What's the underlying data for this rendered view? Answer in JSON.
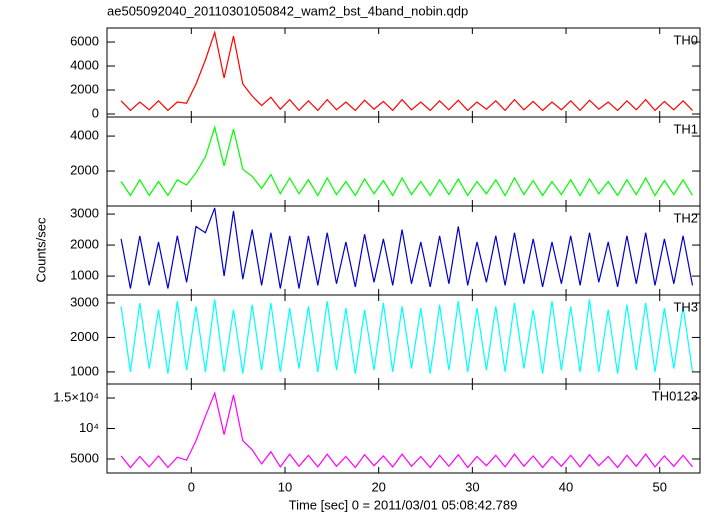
{
  "chart_data": {
    "type": "line",
    "title": "ae505092040_20110301050842_wam2_bst_4band_nobin.qdp",
    "xlabel": "Time [sec] 0 = 2011/03/01 05:08:42.789",
    "ylabel": "Counts/sec",
    "xlim": [
      -9,
      54.3
    ],
    "xticks": [
      0,
      10,
      20,
      30,
      40,
      50
    ],
    "x": [
      -7.5,
      -6.5,
      -5.5,
      -4.5,
      -3.5,
      -2.5,
      -1.5,
      -0.5,
      0.5,
      1.5,
      2.5,
      3.5,
      4.5,
      5.5,
      6.5,
      7.5,
      8.5,
      9.5,
      10.5,
      11.5,
      12.5,
      13.5,
      14.5,
      15.5,
      16.5,
      17.5,
      18.5,
      19.5,
      20.5,
      21.5,
      22.5,
      23.5,
      24.5,
      25.5,
      26.5,
      27.5,
      28.5,
      29.5,
      30.5,
      31.5,
      32.5,
      33.5,
      34.5,
      35.5,
      36.5,
      37.5,
      38.5,
      39.5,
      40.5,
      41.5,
      42.5,
      43.5,
      44.5,
      45.5,
      46.5,
      47.5,
      48.5,
      49.5,
      50.5,
      51.5,
      52.5,
      53.5
    ],
    "panels": [
      {
        "ylim": [
          -250,
          7170
        ],
        "yticks": [
          0,
          2000,
          4000,
          6000
        ],
        "series": [
          {
            "name": "TH0",
            "color": "#ff0000",
            "values": [
              1100,
              300,
              1000,
              350,
              1100,
              300,
              1000,
              900,
              2500,
              4500,
              6800,
              3000,
              6500,
              2500,
              1500,
              700,
              1400,
              400,
              1200,
              300,
              1100,
              300,
              1200,
              350,
              1000,
              300,
              1150,
              400,
              1050,
              300,
              1200,
              350,
              1000,
              300,
              1100,
              350,
              1150,
              300,
              1000,
              400,
              1100,
              300,
              1200,
              350,
              1050,
              300,
              1000,
              350,
              1100,
              300,
              1150,
              400,
              1000,
              300,
              1100,
              350,
              1200,
              300,
              1050,
              350,
              1100,
              300
            ]
          }
        ]
      },
      {
        "ylim": [
          0,
          5090
        ],
        "yticks": [
          2000,
          4000
        ],
        "series": [
          {
            "name": "TH1",
            "color": "#00ff00",
            "values": [
              1400,
              600,
              1500,
              600,
              1400,
              600,
              1500,
              1200,
              1900,
              2800,
              4500,
              2300,
              4400,
              2100,
              1700,
              1000,
              1800,
              700,
              1600,
              700,
              1500,
              600,
              1600,
              650,
              1400,
              600,
              1550,
              700,
              1450,
              600,
              1600,
              650,
              1400,
              600,
              1500,
              650,
              1550,
              600,
              1400,
              700,
              1500,
              600,
              1600,
              650,
              1450,
              600,
              1400,
              650,
              1500,
              600,
              1550,
              700,
              1400,
              600,
              1500,
              650,
              1600,
              600,
              1450,
              650,
              1500,
              600
            ]
          }
        ]
      },
      {
        "ylim": [
          390,
          3260
        ],
        "yticks": [
          1000,
          2000,
          3000
        ],
        "series": [
          {
            "name": "TH2",
            "color": "#0000cc",
            "values": [
              2200,
              600,
              2300,
              700,
              2100,
              600,
              2300,
              800,
              2600,
              2400,
              3200,
              1000,
              3100,
              900,
              2500,
              700,
              2400,
              600,
              2300,
              600,
              2300,
              700,
              2400,
              750,
              2100,
              650,
              2350,
              800,
              2200,
              700,
              2500,
              750,
              2100,
              650,
              2300,
              750,
              2600,
              700,
              2100,
              800,
              2300,
              700,
              2400,
              750,
              2200,
              650,
              2100,
              750,
              2300,
              700,
              2400,
              800,
              2100,
              650,
              2300,
              750,
              2400,
              700,
              2200,
              750,
              2300,
              700
            ]
          }
        ]
      },
      {
        "ylim": [
          650,
          3230
        ],
        "yticks": [
          1000,
          2000,
          3000
        ],
        "series": [
          {
            "name": "TH3",
            "color": "#00ffff",
            "values": [
              2900,
              1000,
              3000,
              1100,
              2800,
              950,
              3050,
              1050,
              2900,
              1000,
              3100,
              1000,
              2800,
              950,
              2950,
              1050,
              3000,
              1000,
              2850,
              1100,
              2900,
              1000,
              3050,
              1050,
              2850,
              950,
              2800,
              1050,
              3000,
              1000,
              2900,
              1100,
              2850,
              950,
              2950,
              1050,
              3050,
              1000,
              2850,
              1050,
              2900,
              1000,
              3000,
              1100,
              2800,
              950,
              3050,
              1050,
              2900,
              1000,
              3100,
              1000,
              2800,
              950,
              2950,
              1050,
              3000,
              1000,
              2850,
              1100,
              2900,
              1000
            ]
          }
        ]
      },
      {
        "ylim": [
          2700,
          17300
        ],
        "yticks": [
          5000,
          {
            "value": 10000,
            "label": "10⁴"
          },
          {
            "value": 15000,
            "label": "1.5×10⁴"
          }
        ],
        "series": [
          {
            "name": "TH0123",
            "color": "#ff00ff",
            "values": [
              5500,
              3600,
              5400,
              3700,
              5500,
              3600,
              5300,
              4800,
              8000,
              12000,
              15800,
              9000,
              15500,
              8000,
              6500,
              4200,
              6200,
              3700,
              5800,
              3800,
              5600,
              3700,
              5800,
              3800,
              5400,
              3600,
              5700,
              3900,
              5500,
              3700,
              5800,
              3800,
              5400,
              3600,
              5600,
              3800,
              5700,
              3600,
              5400,
              3900,
              5600,
              3700,
              5800,
              3800,
              5500,
              3600,
              5400,
              3800,
              5600,
              3700,
              5700,
              3900,
              5400,
              3600,
              5600,
              3800,
              5800,
              3700,
              5500,
              3800,
              5600,
              3700
            ]
          }
        ]
      }
    ]
  }
}
